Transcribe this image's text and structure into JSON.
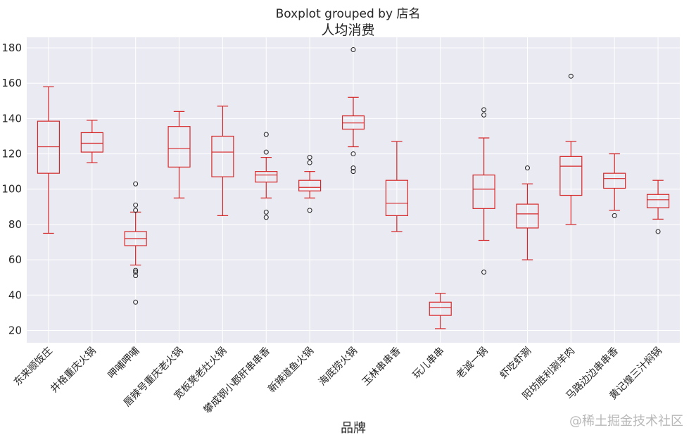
{
  "suptitle": "Boxplot grouped by 店名",
  "watermark": "@稀土掘金技术社区",
  "chart_data": {
    "type": "boxplot",
    "title": "人均消费",
    "suptitle": "Boxplot grouped by 店名",
    "xlabel": "品牌",
    "ylabel": "",
    "ylim": [
      13,
      186
    ],
    "yticks": [
      20,
      40,
      60,
      80,
      100,
      120,
      140,
      160,
      180
    ],
    "grid": true,
    "colors": {
      "box": "#d62728",
      "flier": "#222222",
      "background": "#eaeaf2",
      "grid": "#ffffff"
    },
    "categories": [
      "东来顺饭庄",
      "井格重庆火锅",
      "呷哺呷哺",
      "唇辣号重庆老火锅",
      "宽板凳老灶火锅",
      "攀成钢小郡肝串串香",
      "新辣道鱼火锅",
      "海底捞火锅",
      "玉林串串香",
      "玩儿串串",
      "老诚一锅",
      "虾吃虾涮",
      "阳坊胜利涮羊肉",
      "马路边边串串香",
      "黄记煌三汁焖锅"
    ],
    "boxes": [
      {
        "name": "东来顺饭庄",
        "whislo": 75,
        "q1": 109,
        "med": 124,
        "q3": 138.5,
        "whishi": 158,
        "fliers": []
      },
      {
        "name": "井格重庆火锅",
        "whislo": 115,
        "q1": 121,
        "med": 126,
        "q3": 132,
        "whishi": 139,
        "fliers": []
      },
      {
        "name": "呷哺呷哺",
        "whislo": 57,
        "q1": 68,
        "med": 72,
        "q3": 76,
        "whishi": 87,
        "fliers": [
          103,
          91,
          88,
          54,
          53,
          51,
          36
        ]
      },
      {
        "name": "唇辣号重庆老火锅",
        "whislo": 95,
        "q1": 112.5,
        "med": 123,
        "q3": 135.5,
        "whishi": 144,
        "fliers": []
      },
      {
        "name": "宽板凳老灶火锅",
        "whislo": 85,
        "q1": 107,
        "med": 121,
        "q3": 130,
        "whishi": 147,
        "fliers": []
      },
      {
        "name": "攀成钢小郡肝串串香",
        "whislo": 95,
        "q1": 104,
        "med": 108,
        "q3": 110,
        "whishi": 118,
        "fliers": [
          131,
          121,
          87,
          84
        ]
      },
      {
        "name": "新辣道鱼火锅",
        "whislo": 95,
        "q1": 99,
        "med": 101,
        "q3": 105,
        "whishi": 110,
        "fliers": [
          118,
          115,
          88
        ]
      },
      {
        "name": "海底捞火锅",
        "whislo": 124,
        "q1": 134,
        "med": 137.5,
        "q3": 141.5,
        "whishi": 152,
        "fliers": [
          179,
          120,
          112,
          110
        ]
      },
      {
        "name": "玉林串串香",
        "whislo": 76,
        "q1": 85,
        "med": 92,
        "q3": 105,
        "whishi": 127,
        "fliers": []
      },
      {
        "name": "玩儿串串",
        "whislo": 21,
        "q1": 28.5,
        "med": 33,
        "q3": 36,
        "whishi": 41,
        "fliers": []
      },
      {
        "name": "老诚一锅",
        "whislo": 71,
        "q1": 89,
        "med": 100,
        "q3": 108,
        "whishi": 129,
        "fliers": [
          145,
          142,
          53
        ]
      },
      {
        "name": "虾吃虾涮",
        "whislo": 60,
        "q1": 78,
        "med": 86,
        "q3": 91.5,
        "whishi": 103,
        "fliers": [
          112
        ]
      },
      {
        "name": "阳坊胜利涮羊肉",
        "whislo": 80,
        "q1": 96.5,
        "med": 113,
        "q3": 118.5,
        "whishi": 127,
        "fliers": [
          164
        ]
      },
      {
        "name": "马路边边串串香",
        "whislo": 88,
        "q1": 100.5,
        "med": 106,
        "q3": 109,
        "whishi": 120,
        "fliers": [
          85
        ]
      },
      {
        "name": "黄记煌三汁焖锅",
        "whislo": 83,
        "q1": 89.5,
        "med": 94,
        "q3": 97,
        "whishi": 105,
        "fliers": [
          76
        ]
      }
    ]
  }
}
